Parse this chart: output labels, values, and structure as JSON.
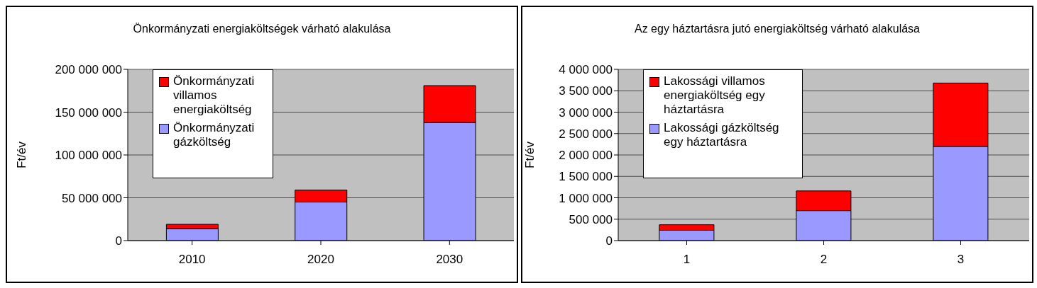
{
  "chart_data": [
    {
      "type": "bar",
      "title": "Önkormányzati energiaköltségek várható alakulása",
      "ylabel": "Ft/év",
      "categories": [
        "2010",
        "2020",
        "2030"
      ],
      "stacked": true,
      "series": [
        {
          "name": "Önkormányzati gázköltség",
          "color": "#9999ff",
          "values": [
            14000000,
            45000000,
            138000000
          ]
        },
        {
          "name": "Önkormányzati villamos energiaköltség",
          "color": "#ff0000",
          "values": [
            5000000,
            14000000,
            43000000
          ]
        }
      ],
      "ylim": [
        0,
        200000000
      ],
      "yticks": [
        {
          "value": 0,
          "label": "0"
        },
        {
          "value": 50000000,
          "label": "50 000 000"
        },
        {
          "value": 100000000,
          "label": "100 000 000"
        },
        {
          "value": 150000000,
          "label": "150 000 000"
        },
        {
          "value": 200000000,
          "label": "200 000 000"
        }
      ],
      "grid": "y",
      "legend": "top left"
    },
    {
      "type": "bar",
      "title": "Az egy háztartásra jutó energiaköltség várható alakulása",
      "ylabel": "Ft/év",
      "categories": [
        "1",
        "2",
        "3"
      ],
      "stacked": true,
      "series": [
        {
          "name": "Lakossági gázköltség egy háztartásra",
          "color": "#9999ff",
          "values": [
            240000,
            700000,
            2200000
          ]
        },
        {
          "name": "Lakossági villamos energiaköltség egy háztartásra",
          "color": "#ff0000",
          "values": [
            130000,
            460000,
            1480000
          ]
        }
      ],
      "ylim": [
        0,
        4000000
      ],
      "yticks": [
        {
          "value": 0,
          "label": "0"
        },
        {
          "value": 500000,
          "label": "500 000"
        },
        {
          "value": 1000000,
          "label": "1 000 000"
        },
        {
          "value": 1500000,
          "label": "1 500 000"
        },
        {
          "value": 2000000,
          "label": "2 000 000"
        },
        {
          "value": 2500000,
          "label": "2 500 000"
        },
        {
          "value": 3000000,
          "label": "3 000 000"
        },
        {
          "value": 3500000,
          "label": "3 500 000"
        },
        {
          "value": 4000000,
          "label": "4 000 000"
        }
      ],
      "grid": "y",
      "legend": "top left"
    }
  ]
}
